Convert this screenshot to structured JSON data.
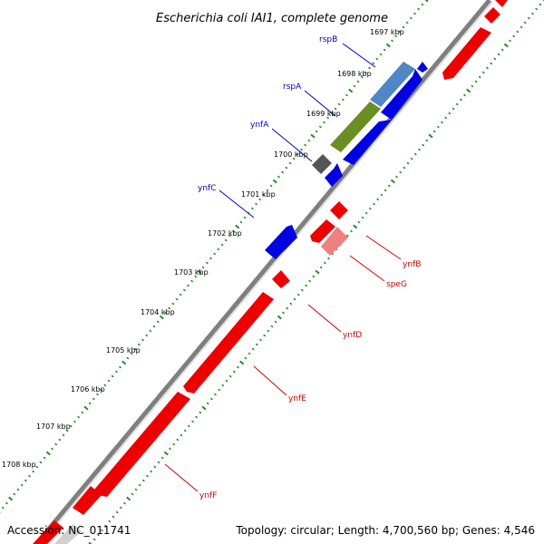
{
  "title": "Escherichia coli IAI1, complete genome",
  "footer": {
    "accession": "Accession: NC_011741",
    "topology": "Topology: circular; Length: 4,700,560 bp; Genes: 4,546"
  },
  "colors": {
    "backbone": "#808080",
    "forward_gene": "#0000e0",
    "reverse_gene": "#ee0000",
    "tick": "#228b22",
    "label_blue": "#0000cc",
    "label_red": "#cc0000"
  },
  "scale_labels": [
    "1697 kbp",
    "1698 kbp",
    "1699 kbp",
    "1700 kbp",
    "1701 kbp",
    "1702 kbp",
    "1703 kbp",
    "1704 kbp",
    "1705 kbp",
    "1706 kbp",
    "1707 kbp",
    "1708 kbp"
  ],
  "gene_labels_blue": [
    "rspB",
    "rspA",
    "ynfA",
    "ynfC"
  ],
  "gene_labels_red": [
    "ynfB",
    "speG",
    "ynfD",
    "ynfE",
    "ynfF"
  ]
}
